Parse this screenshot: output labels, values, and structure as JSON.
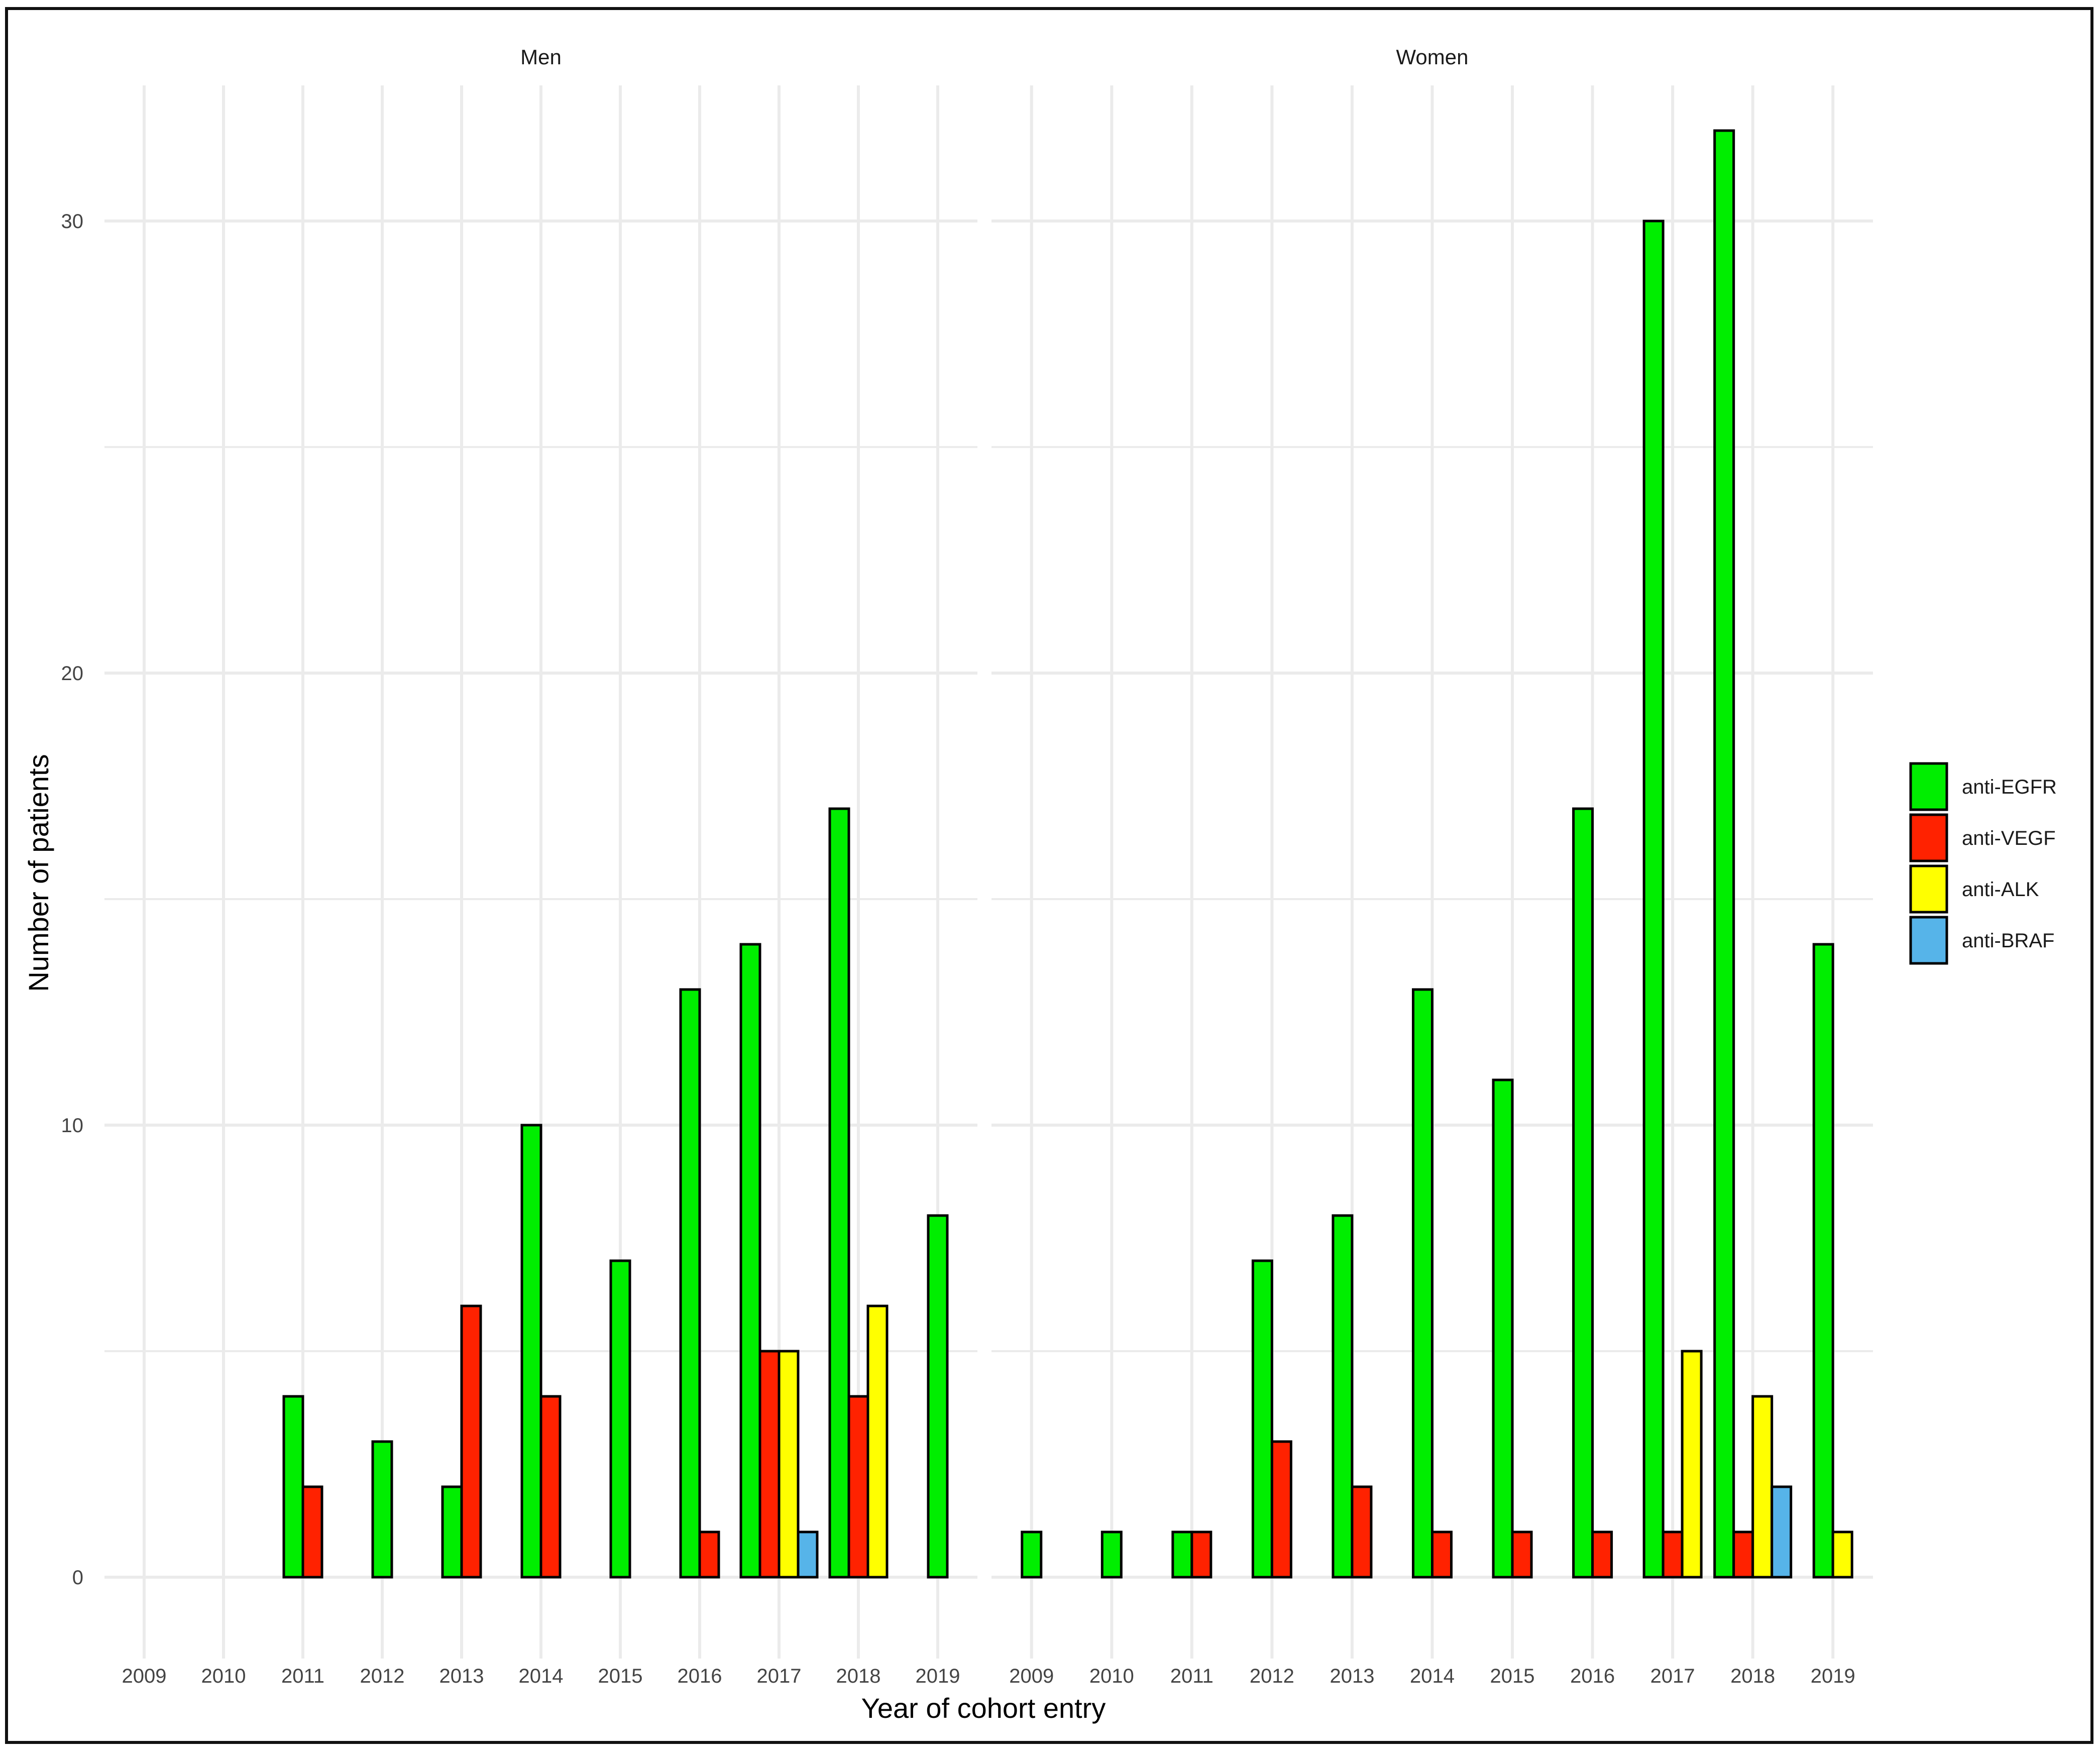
{
  "chart_data": {
    "type": "bar",
    "title": "",
    "xlabel": "Year of cohort entry",
    "ylabel": "Number of patients",
    "ylim": [
      -1.8,
      33
    ],
    "yticks": [
      0,
      10,
      20,
      30
    ],
    "grid": true,
    "legend_position": "right",
    "categories": [
      "2009",
      "2010",
      "2011",
      "2012",
      "2013",
      "2014",
      "2015",
      "2016",
      "2017",
      "2018",
      "2019"
    ],
    "series": [
      {
        "name": "anti-EGFR",
        "color": "#00ee00"
      },
      {
        "name": "anti-VEGF",
        "color": "#ff2200"
      },
      {
        "name": "anti-ALK",
        "color": "#ffff00"
      },
      {
        "name": "anti-BRAF",
        "color": "#56b4e9"
      }
    ],
    "panels": [
      {
        "label": "Men",
        "values": {
          "anti-EGFR": [
            0,
            0,
            4,
            3,
            2,
            10,
            7,
            13,
            14,
            17,
            8
          ],
          "anti-VEGF": [
            0,
            0,
            2,
            0,
            6,
            4,
            0,
            1,
            5,
            4,
            0
          ],
          "anti-ALK": [
            0,
            0,
            0,
            0,
            0,
            0,
            0,
            0,
            5,
            6,
            0
          ],
          "anti-BRAF": [
            0,
            0,
            0,
            0,
            0,
            0,
            0,
            0,
            1,
            0,
            0
          ]
        }
      },
      {
        "label": "Women",
        "values": {
          "anti-EGFR": [
            1,
            1,
            1,
            7,
            8,
            13,
            11,
            17,
            30,
            32,
            14
          ],
          "anti-VEGF": [
            0,
            0,
            1,
            3,
            2,
            1,
            1,
            1,
            1,
            1,
            0
          ],
          "anti-ALK": [
            0,
            0,
            0,
            0,
            0,
            0,
            0,
            0,
            5,
            4,
            1
          ],
          "anti-BRAF": [
            0,
            0,
            0,
            0,
            0,
            0,
            0,
            0,
            0,
            2,
            0
          ]
        }
      }
    ]
  }
}
